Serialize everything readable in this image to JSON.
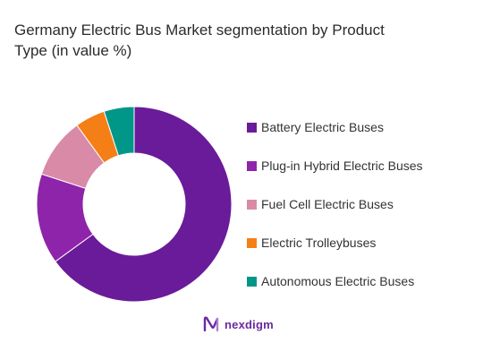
{
  "chart_data": {
    "type": "pie",
    "donut": true,
    "title_lines": [
      "Germany Electric Bus Market segmentation by Product",
      "Type (in value %)"
    ],
    "slices": [
      {
        "label": "Battery Electric Buses",
        "value": 65,
        "color": "#6a1b9a"
      },
      {
        "label": "Plug-in Hybrid Electric Buses",
        "value": 15,
        "color": "#8e24aa"
      },
      {
        "label": "Fuel Cell Electric Buses",
        "value": 10,
        "color": "#d98aa6"
      },
      {
        "label": "Electric Trolleybuses",
        "value": 5,
        "color": "#f57f17"
      },
      {
        "label": "Autonomous Electric Buses",
        "value": 5,
        "color": "#009688"
      }
    ],
    "legend_position": "right"
  },
  "branding": {
    "name": "nexdigm",
    "logo_icon": "nexdigm-logo-icon",
    "color": "#6a2aa0"
  }
}
